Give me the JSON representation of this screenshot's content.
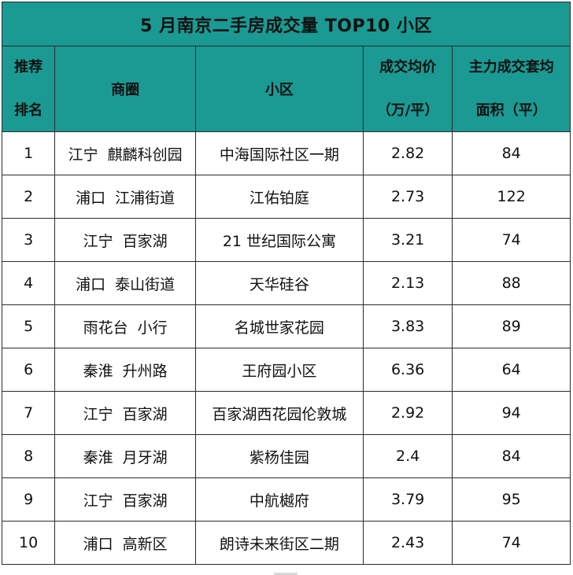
{
  "title": "5 月南京二手房成交量 TOP10 小区",
  "colors": {
    "header_bg": "#1a9a93",
    "border": "#2b2b2b",
    "text": "#111111"
  },
  "headers": {
    "rank": [
      "推荐",
      "排名"
    ],
    "district": "商圈",
    "community": "小区",
    "price": [
      "成交均价",
      "（万/平）"
    ],
    "area": [
      "主力成交套均",
      "面积（平）"
    ]
  },
  "rows": [
    {
      "rank": "1",
      "district_a": "江宁",
      "district_b": "麒麟科创园",
      "community": "中海国际社区一期",
      "price": "2.82",
      "area": "84"
    },
    {
      "rank": "2",
      "district_a": "浦口",
      "district_b": "江浦街道",
      "community": "江佑铂庭",
      "price": "2.73",
      "area": "122"
    },
    {
      "rank": "3",
      "district_a": "江宁",
      "district_b": "百家湖",
      "community": "21 世纪国际公寓",
      "price": "3.21",
      "area": "74"
    },
    {
      "rank": "4",
      "district_a": "浦口",
      "district_b": "泰山街道",
      "community": "天华硅谷",
      "price": "2.13",
      "area": "88"
    },
    {
      "rank": "5",
      "district_a": "雨花台",
      "district_b": "小行",
      "community": "名城世家花园",
      "price": "3.83",
      "area": "89"
    },
    {
      "rank": "6",
      "district_a": "秦淮",
      "district_b": "升州路",
      "community": "王府园小区",
      "price": "6.36",
      "area": "64"
    },
    {
      "rank": "7",
      "district_a": "江宁",
      "district_b": "百家湖",
      "community": "百家湖西花园伦敦城",
      "price": "2.92",
      "area": "94"
    },
    {
      "rank": "8",
      "district_a": "秦淮",
      "district_b": "月牙湖",
      "community": "紫杨佳园",
      "price": "2.4",
      "area": "84"
    },
    {
      "rank": "9",
      "district_a": "江宁",
      "district_b": "百家湖",
      "community": "中航樾府",
      "price": "3.79",
      "area": "95"
    },
    {
      "rank": "10",
      "district_a": "浦口",
      "district_b": "高新区",
      "community": "朗诗未来街区二期",
      "price": "2.43",
      "area": "74"
    }
  ]
}
